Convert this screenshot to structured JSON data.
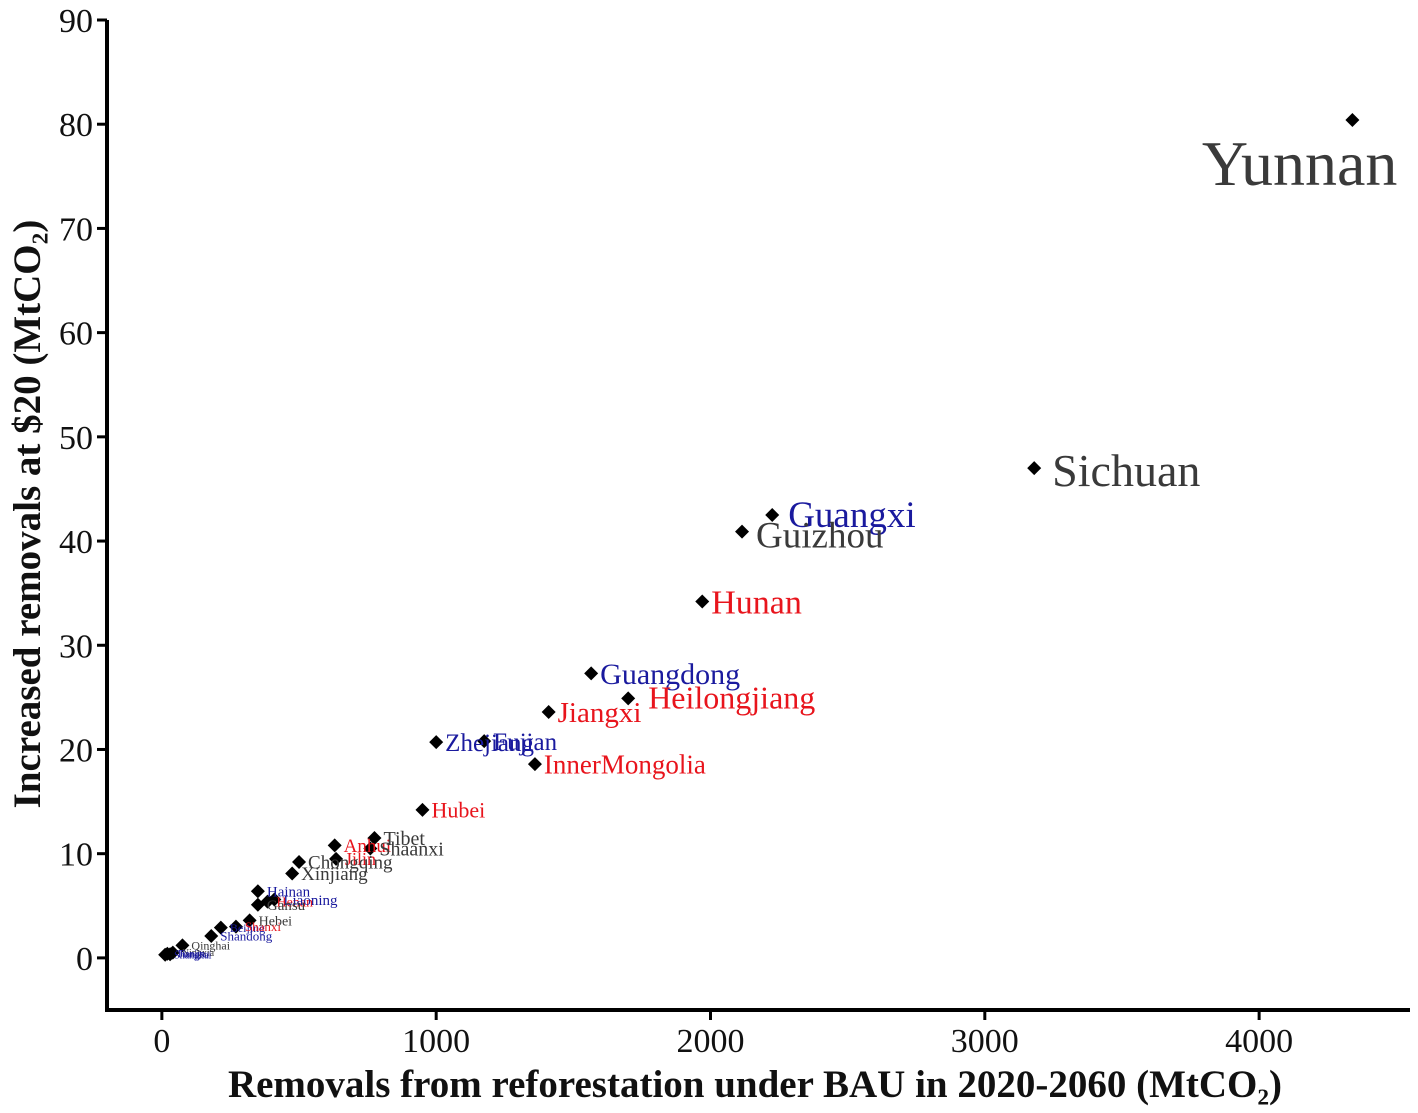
{
  "chart_data": {
    "type": "scatter",
    "title": "",
    "xlabel": "Removals from reforestation under BAU in 2020-2060 (MtCO₂)",
    "ylabel": "Increased removals at $20 (MtCO₂)",
    "xlim": [
      -200,
      4550
    ],
    "ylim": [
      -5,
      90
    ],
    "xticks": [
      0,
      1000,
      2000,
      3000,
      4000
    ],
    "yticks": [
      0,
      10,
      20,
      30,
      40,
      50,
      60,
      70,
      80,
      90
    ],
    "grid": false,
    "label_colors": {
      "red": "#e8141c",
      "blue": "#1a1a9e",
      "gray": "#3a3a3a"
    },
    "points": [
      {
        "name": "Yunnan",
        "x": 4340,
        "y": 80.4,
        "color": "gray",
        "size": 64
      },
      {
        "name": "Sichuan",
        "x": 3180,
        "y": 47.0,
        "color": "gray",
        "size": 46
      },
      {
        "name": "Guangxi",
        "x": 2225,
        "y": 42.5,
        "color": "blue",
        "size": 37
      },
      {
        "name": "Guizhou",
        "x": 2115,
        "y": 40.9,
        "color": "gray",
        "size": 37
      },
      {
        "name": "Hunan",
        "x": 1970,
        "y": 34.2,
        "color": "red",
        "size": 34
      },
      {
        "name": "Guangdong",
        "x": 1565,
        "y": 27.3,
        "color": "blue",
        "size": 30
      },
      {
        "name": "Heilongjiang",
        "x": 1700,
        "y": 24.9,
        "color": "red",
        "size": 32
      },
      {
        "name": "Jiangxi",
        "x": 1410,
        "y": 23.6,
        "color": "red",
        "size": 29
      },
      {
        "name": "Zhejiang",
        "x": 1000,
        "y": 20.7,
        "color": "blue",
        "size": 25
      },
      {
        "name": "Fujian",
        "x": 1175,
        "y": 20.8,
        "color": "blue",
        "size": 25
      },
      {
        "name": "InnerMongolia",
        "x": 1360,
        "y": 18.6,
        "color": "red",
        "size": 27
      },
      {
        "name": "Hubei",
        "x": 950,
        "y": 14.2,
        "color": "red",
        "size": 22
      },
      {
        "name": "Tibet",
        "x": 775,
        "y": 11.5,
        "color": "gray",
        "size": 20
      },
      {
        "name": "Shaanxi",
        "x": 760,
        "y": 10.5,
        "color": "gray",
        "size": 20
      },
      {
        "name": "Anhui",
        "x": 630,
        "y": 10.8,
        "color": "red",
        "size": 19
      },
      {
        "name": "Jilin",
        "x": 635,
        "y": 9.5,
        "color": "red",
        "size": 18
      },
      {
        "name": "Chongqing",
        "x": 500,
        "y": 9.2,
        "color": "gray",
        "size": 19
      },
      {
        "name": "Xinjiang",
        "x": 475,
        "y": 8.1,
        "color": "gray",
        "size": 19
      },
      {
        "name": "Hainan",
        "x": 350,
        "y": 6.4,
        "color": "blue",
        "size": 15
      },
      {
        "name": "Liaoning",
        "x": 410,
        "y": 5.6,
        "color": "blue",
        "size": 15
      },
      {
        "name": "Henan",
        "x": 385,
        "y": 5.4,
        "color": "red",
        "size": 14
      },
      {
        "name": "Gansu",
        "x": 350,
        "y": 5.1,
        "color": "gray",
        "size": 15
      },
      {
        "name": "Hebei",
        "x": 320,
        "y": 3.6,
        "color": "gray",
        "size": 14
      },
      {
        "name": "Shanxi",
        "x": 270,
        "y": 3.0,
        "color": "red",
        "size": 13
      },
      {
        "name": "Beijing",
        "x": 215,
        "y": 2.9,
        "color": "blue",
        "size": 12
      },
      {
        "name": "Shandong",
        "x": 180,
        "y": 2.1,
        "color": "blue",
        "size": 13
      },
      {
        "name": "Qinghai",
        "x": 75,
        "y": 1.2,
        "color": "gray",
        "size": 12
      },
      {
        "name": "Ningxia",
        "x": 40,
        "y": 0.5,
        "color": "gray",
        "size": 10
      },
      {
        "name": "Tianjin",
        "x": 20,
        "y": 0.4,
        "color": "blue",
        "size": 10
      },
      {
        "name": "Shanghai",
        "x": 12,
        "y": 0.3,
        "color": "blue",
        "size": 10
      },
      {
        "name": "Jiangsu",
        "x": 30,
        "y": 0.35,
        "color": "blue",
        "size": 10
      }
    ]
  }
}
